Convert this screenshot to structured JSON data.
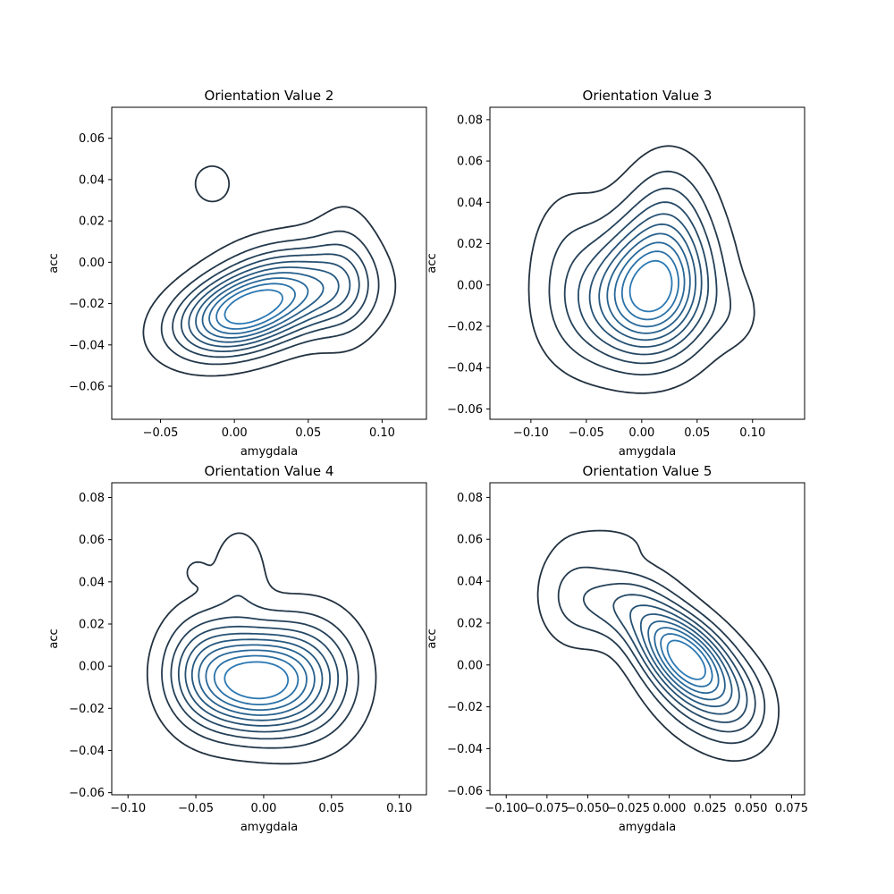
{
  "chart_data": [
    {
      "type": "kde-contour",
      "title": "Orientation Value 2",
      "xlabel": "amygdala",
      "ylabel": "acc",
      "xlim": [
        -0.083,
        0.13
      ],
      "ylim": [
        -0.076,
        0.075
      ],
      "xticks": [
        -0.05,
        0.0,
        0.05,
        0.1
      ],
      "xtick_labels": [
        "−0.05",
        "0.00",
        "0.05",
        "0.10"
      ],
      "yticks": [
        -0.06,
        -0.04,
        -0.02,
        0.0,
        0.02,
        0.04,
        0.06
      ],
      "ytick_labels": [
        "−0.06",
        "−0.04",
        "−0.02",
        "0.00",
        "0.02",
        "0.04",
        "0.06"
      ],
      "levels": 10,
      "peak": [
        0.003,
        -0.025
      ],
      "lobes": [
        {
          "center": [
            0.003,
            -0.025
          ],
          "amp": 1.0,
          "sx": 0.028,
          "sy": 0.013,
          "rho": 0.3
        },
        {
          "center": [
            0.045,
            -0.012
          ],
          "amp": 0.55,
          "sx": 0.03,
          "sy": 0.014,
          "rho": 0.0
        },
        {
          "center": [
            0.075,
            -0.005
          ],
          "amp": 0.18,
          "sx": 0.015,
          "sy": 0.022,
          "rho": 0.0
        },
        {
          "center": [
            -0.015,
            0.038
          ],
          "amp": 0.11,
          "sx": 0.012,
          "sy": 0.009,
          "rho": 0.0
        }
      ]
    },
    {
      "type": "kde-contour",
      "title": "Orientation Value 3",
      "xlabel": "amygdala",
      "ylabel": "acc",
      "xlim": [
        -0.137,
        0.147
      ],
      "ylim": [
        -0.065,
        0.086
      ],
      "xticks": [
        -0.1,
        -0.05,
        0.0,
        0.05,
        0.1
      ],
      "xtick_labels": [
        "−0.10",
        "−0.05",
        "0.00",
        "0.05",
        "0.10"
      ],
      "yticks": [
        -0.06,
        -0.04,
        -0.02,
        0.0,
        0.02,
        0.04,
        0.06,
        0.08
      ],
      "ytick_labels": [
        "−0.06",
        "−0.04",
        "−0.02",
        "0.00",
        "0.02",
        "0.04",
        "0.06",
        "0.08"
      ],
      "levels": 10,
      "peak": [
        0.013,
        0.0
      ],
      "lobes": [
        {
          "center": [
            0.013,
            0.0
          ],
          "amp": 1.0,
          "sx": 0.032,
          "sy": 0.022,
          "rho": 0.0
        },
        {
          "center": [
            -0.01,
            -0.008
          ],
          "amp": 0.55,
          "sx": 0.04,
          "sy": 0.02,
          "rho": 0.2
        },
        {
          "center": [
            0.025,
            0.035
          ],
          "amp": 0.3,
          "sx": 0.025,
          "sy": 0.02,
          "rho": 0.0
        },
        {
          "center": [
            -0.065,
            0.01
          ],
          "amp": 0.2,
          "sx": 0.025,
          "sy": 0.025,
          "rho": 0.0
        },
        {
          "center": [
            0.085,
            -0.015
          ],
          "amp": 0.1,
          "sx": 0.018,
          "sy": 0.012,
          "rho": 0.0
        }
      ]
    },
    {
      "type": "kde-contour",
      "title": "Orientation Value 4",
      "xlabel": "amygdala",
      "ylabel": "acc",
      "xlim": [
        -0.112,
        0.12
      ],
      "ylim": [
        -0.061,
        0.087
      ],
      "xticks": [
        -0.1,
        -0.05,
        0.0,
        0.05,
        0.1
      ],
      "xtick_labels": [
        "−0.10",
        "−0.05",
        "0.00",
        "0.05",
        "0.10"
      ],
      "yticks": [
        -0.06,
        -0.04,
        -0.02,
        0.0,
        0.02,
        0.04,
        0.06,
        0.08
      ],
      "ytick_labels": [
        "−0.06",
        "−0.04",
        "−0.02",
        "0.00",
        "0.02",
        "0.04",
        "0.06",
        "0.08"
      ],
      "levels": 10,
      "peak": [
        -0.007,
        -0.007
      ],
      "lobes": [
        {
          "center": [
            -0.007,
            -0.007
          ],
          "amp": 1.0,
          "sx": 0.03,
          "sy": 0.016,
          "rho": 0.0
        },
        {
          "center": [
            0.035,
            -0.005
          ],
          "amp": 0.35,
          "sx": 0.025,
          "sy": 0.02,
          "rho": 0.0
        },
        {
          "center": [
            -0.045,
            0.0
          ],
          "amp": 0.3,
          "sx": 0.02,
          "sy": 0.018,
          "rho": 0.0
        },
        {
          "center": [
            -0.018,
            0.045
          ],
          "amp": 0.14,
          "sx": 0.014,
          "sy": 0.015,
          "rho": 0.0
        },
        {
          "center": [
            -0.05,
            0.045
          ],
          "amp": 0.09,
          "sx": 0.006,
          "sy": 0.004,
          "rho": 0.0
        }
      ]
    },
    {
      "type": "kde-contour",
      "title": "Orientation Value 5",
      "xlabel": "amygdala",
      "ylabel": "acc",
      "xlim": [
        -0.11,
        0.083
      ],
      "ylim": [
        -0.062,
        0.087
      ],
      "xticks": [
        -0.1,
        -0.075,
        -0.05,
        -0.025,
        0.0,
        0.025,
        0.05,
        0.075
      ],
      "xtick_labels": [
        "−0.100",
        "−0.075",
        "−0.050",
        "−0.025",
        "0.000",
        "0.025",
        "0.050",
        "0.075"
      ],
      "yticks": [
        -0.06,
        -0.04,
        -0.02,
        0.0,
        0.02,
        0.04,
        0.06,
        0.08
      ],
      "ytick_labels": [
        "−0.06",
        "−0.04",
        "−0.02",
        "0.00",
        "0.02",
        "0.04",
        "0.06",
        "0.08"
      ],
      "levels": 10,
      "peak": [
        0.007,
        0.006
      ],
      "lobes": [
        {
          "center": [
            0.007,
            0.006
          ],
          "amp": 1.0,
          "sx": 0.02,
          "sy": 0.015,
          "rho": -0.55
        },
        {
          "center": [
            0.02,
            -0.01
          ],
          "amp": 0.5,
          "sx": 0.022,
          "sy": 0.018,
          "rho": -0.4
        },
        {
          "center": [
            -0.03,
            0.03
          ],
          "amp": 0.3,
          "sx": 0.02,
          "sy": 0.012,
          "rho": 0.0
        },
        {
          "center": [
            -0.06,
            0.035
          ],
          "amp": 0.18,
          "sx": 0.015,
          "sy": 0.018,
          "rho": 0.0
        },
        {
          "center": [
            -0.035,
            0.058
          ],
          "amp": 0.1,
          "sx": 0.015,
          "sy": 0.006,
          "rho": 0.0
        },
        {
          "center": [
            0.045,
            -0.02
          ],
          "amp": 0.12,
          "sx": 0.012,
          "sy": 0.012,
          "rho": 0.0
        }
      ]
    }
  ],
  "style": {
    "contour_color_low": "#22313f",
    "contour_color_high": "#2a78b3"
  }
}
